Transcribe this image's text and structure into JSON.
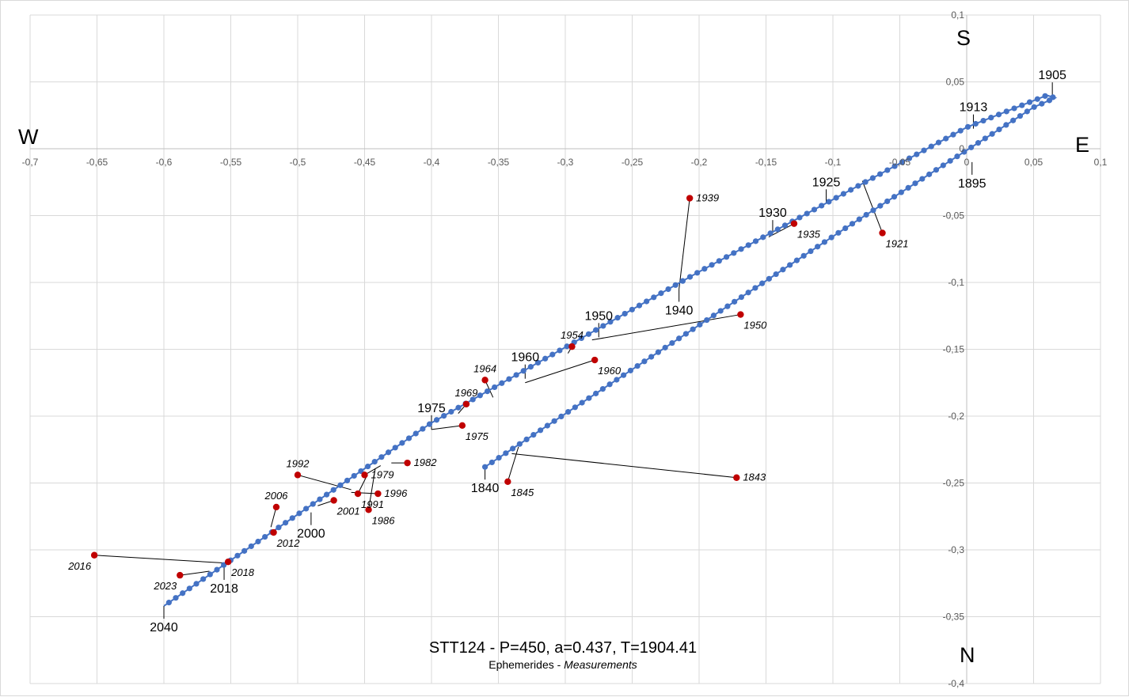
{
  "chart_data": {
    "type": "scatter",
    "title": "STT124 - P=450, a=0.437, T=1904.41",
    "subtitle_plain": "Ephemerides - ",
    "subtitle_italic": "Measurements",
    "xlim": [
      -0.7,
      0.1
    ],
    "ylim": [
      -0.4,
      0.1
    ],
    "x_ticks": [
      "-0,7",
      "-0,65",
      "-0,6",
      "-0,55",
      "-0,5",
      "-0,45",
      "-0,4",
      "-0,35",
      "-0,3",
      "-0,25",
      "-0,2",
      "-0,15",
      "-0,1",
      "-0,05",
      "0",
      "0,05",
      "0,1"
    ],
    "y_ticks": [
      "0,1",
      "0,05",
      "0",
      "-0,05",
      "-0,1",
      "-0,15",
      "-0,2",
      "-0,25",
      "-0,3",
      "-0,35",
      "-0,4"
    ],
    "directions": {
      "north": "N",
      "south": "S",
      "east": "E",
      "west": "W"
    },
    "grid": true,
    "colors": {
      "ephemeris": "#4472c4",
      "measurement": "#c00000",
      "gridline": "#d9d9d9",
      "axis": "#bfbfbf"
    },
    "ephemeris_path": [
      {
        "x": -0.36,
        "y": -0.238
      },
      {
        "x": -0.09,
        "y": -0.059
      },
      {
        "x": 0.05,
        "y": 0.031
      },
      {
        "x": 0.066,
        "y": 0.038
      },
      {
        "x": 0.06,
        "y": 0.04
      },
      {
        "x": 0.0,
        "y": 0.016
      },
      {
        "x": -0.2,
        "y": -0.092
      },
      {
        "x": -0.4,
        "y": -0.205
      },
      {
        "x": -0.6,
        "y": -0.342
      }
    ],
    "ephemeris_labels": [
      {
        "year": "1840",
        "x": -0.36,
        "y": -0.238
      },
      {
        "year": "1895",
        "x": 0.004,
        "y": -0.01
      },
      {
        "year": "1905",
        "x": 0.064,
        "y": 0.039
      },
      {
        "year": "1913",
        "x": 0.005,
        "y": 0.015
      },
      {
        "year": "1925",
        "x": -0.105,
        "y": -0.041
      },
      {
        "year": "1930",
        "x": -0.145,
        "y": -0.064
      },
      {
        "year": "1940",
        "x": -0.215,
        "y": -0.105
      },
      {
        "year": "1950",
        "x": -0.275,
        "y": -0.141
      },
      {
        "year": "1960",
        "x": -0.33,
        "y": -0.172
      },
      {
        "year": "1975",
        "x": -0.4,
        "y": -0.21
      },
      {
        "year": "2000",
        "x": -0.49,
        "y": -0.272
      },
      {
        "year": "2018",
        "x": -0.555,
        "y": -0.313
      },
      {
        "year": "2040",
        "x": -0.6,
        "y": -0.342
      }
    ],
    "measurements": [
      {
        "year": "1843",
        "x": -0.172,
        "y": -0.246,
        "ex": -0.34,
        "ey": -0.228
      },
      {
        "year": "1845",
        "x": -0.343,
        "y": -0.249,
        "ex": -0.335,
        "ey": -0.223
      },
      {
        "year": "1921",
        "x": -0.063,
        "y": -0.063,
        "ex": -0.078,
        "ey": -0.024
      },
      {
        "year": "1935",
        "x": -0.129,
        "y": -0.056,
        "ex": -0.148,
        "ey": -0.066
      },
      {
        "year": "1939",
        "x": -0.207,
        "y": -0.037,
        "ex": -0.215,
        "ey": -0.105
      },
      {
        "year": "1950",
        "x": -0.169,
        "y": -0.124,
        "ex": -0.28,
        "ey": -0.143
      },
      {
        "year": "1954",
        "x": -0.295,
        "y": -0.148,
        "ex": -0.298,
        "ey": -0.153
      },
      {
        "year": "1960",
        "x": -0.278,
        "y": -0.158,
        "ex": -0.33,
        "ey": -0.175
      },
      {
        "year": "1964",
        "x": -0.36,
        "y": -0.173,
        "ex": -0.354,
        "ey": -0.186
      },
      {
        "year": "1969",
        "x": -0.374,
        "y": -0.191,
        "ex": -0.38,
        "ey": -0.198
      },
      {
        "year": "1975",
        "x": -0.377,
        "y": -0.207,
        "ex": -0.4,
        "ey": -0.21
      },
      {
        "year": "1979",
        "x": -0.45,
        "y": -0.244,
        "ex": -0.438,
        "ey": -0.237
      },
      {
        "year": "1982",
        "x": -0.418,
        "y": -0.235,
        "ex": -0.43,
        "ey": -0.235
      },
      {
        "year": "1986",
        "x": -0.447,
        "y": -0.27,
        "ex": -0.442,
        "ey": -0.239
      },
      {
        "year": "1991",
        "x": -0.455,
        "y": -0.258,
        "ex": -0.448,
        "ey": -0.244
      },
      {
        "year": "1992",
        "x": -0.5,
        "y": -0.244,
        "ex": -0.46,
        "ey": -0.255
      },
      {
        "year": "1996",
        "x": -0.44,
        "y": -0.258,
        "ex": -0.46,
        "ey": -0.257
      },
      {
        "year": "2001",
        "x": -0.473,
        "y": -0.263,
        "ex": -0.485,
        "ey": -0.267
      },
      {
        "year": "2006",
        "x": -0.516,
        "y": -0.268,
        "ex": -0.52,
        "ey": -0.283
      },
      {
        "year": "2012",
        "x": -0.518,
        "y": -0.287,
        "ex": -0.52,
        "ey": -0.287
      },
      {
        "year": "2016",
        "x": -0.652,
        "y": -0.304,
        "ex": -0.552,
        "ey": -0.31
      },
      {
        "year": "2018",
        "x": -0.552,
        "y": -0.309,
        "ex": -0.552,
        "ey": -0.31
      },
      {
        "year": "2023",
        "x": -0.588,
        "y": -0.319,
        "ex": -0.566,
        "ey": -0.316
      }
    ]
  }
}
